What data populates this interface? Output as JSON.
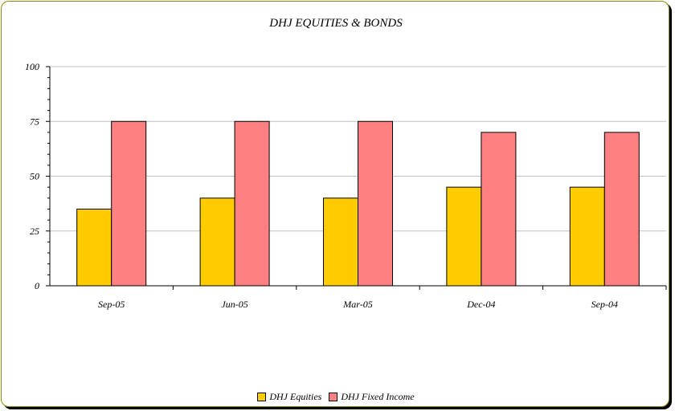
{
  "chart_data": {
    "type": "bar",
    "title": "DHJ EQUITIES & BONDS",
    "categories": [
      "Sep-05",
      "Jun-05",
      "Mar-05",
      "Dec-04",
      "Sep-04"
    ],
    "series": [
      {
        "name": "DHJ Equities",
        "color": "#FFCC00",
        "values": [
          35,
          40,
          40,
          45,
          45
        ]
      },
      {
        "name": "DHJ Fixed Income",
        "color": "#FF8080",
        "values": [
          75,
          75,
          75,
          70,
          70
        ]
      }
    ],
    "ylim": [
      0,
      100
    ],
    "yticks": [
      "0",
      "25",
      "50",
      "75",
      "100"
    ],
    "grid": true,
    "legend_position": "bottom"
  }
}
